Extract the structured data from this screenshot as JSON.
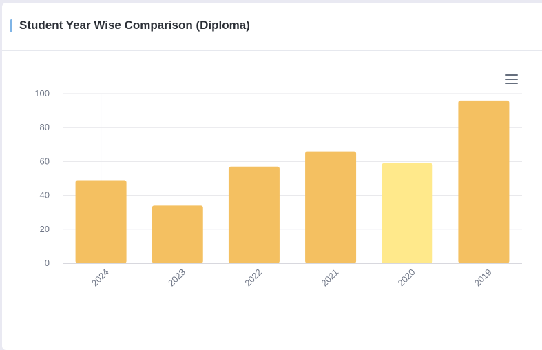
{
  "card": {
    "title": "Student Year Wise Comparison (Diploma)"
  },
  "toolbar": {
    "menu_icon": "hamburger-menu-icon"
  },
  "colors": {
    "bar": "#f4c061",
    "bar_highlight": "#ffe98b",
    "grid": "#e6e6ea",
    "axis_text": "#6f7686",
    "accent": "#7fb4e6"
  },
  "chart_data": {
    "type": "bar",
    "categories": [
      "2024",
      "2023",
      "2022",
      "2021",
      "2020",
      "2019"
    ],
    "values": [
      49,
      34,
      57,
      66,
      59,
      96
    ],
    "highlighted_category": "2020",
    "title": "",
    "xlabel": "",
    "ylabel": "",
    "ylim": [
      0,
      100
    ],
    "yticks": [
      0,
      20,
      40,
      60,
      80,
      100
    ],
    "grid": true
  }
}
